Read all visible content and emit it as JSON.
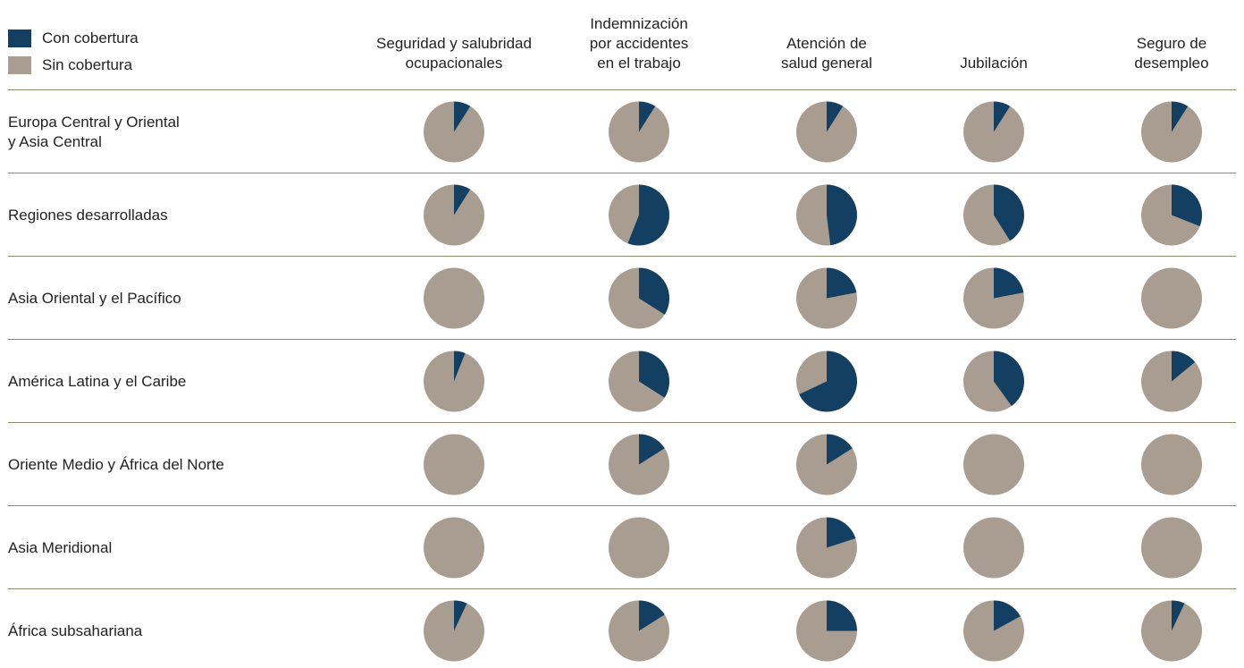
{
  "legend": {
    "covered_label": "Con cobertura",
    "uncovered_label": "Sin cobertura"
  },
  "colors": {
    "covered": "#123f62",
    "uncovered": "#a89d90",
    "rule": "#8e8a6f"
  },
  "chart_data": {
    "type": "pie",
    "series_names": [
      "Con cobertura",
      "Sin cobertura"
    ],
    "columns": [
      "Seguridad y salubridad ocupacionales",
      "Indemnización por accidentes en el trabajo",
      "Atención de salud general",
      "Jubilación",
      "Seguro de desempleo"
    ],
    "column_header_lines": [
      [
        "Seguridad y salubridad",
        "ocupacionales"
      ],
      [
        "Indemnización",
        "por accidentes",
        "en el trabajo"
      ],
      [
        "Atención de",
        "salud general"
      ],
      [
        "Jubilación"
      ],
      [
        "Seguro de",
        "desempleo"
      ]
    ],
    "rows": [
      {
        "label_lines": [
          "Europa Central y Oriental",
          "y Asia Central"
        ],
        "covered_share": [
          0.09,
          0.09,
          0.09,
          0.09,
          0.09
        ]
      },
      {
        "label_lines": [
          "Regiones desarrolladas"
        ],
        "covered_share": [
          0.09,
          0.56,
          0.48,
          0.41,
          0.31
        ]
      },
      {
        "label_lines": [
          "Asia Oriental y el Pacífico"
        ],
        "covered_share": [
          0,
          0.34,
          0.22,
          0.22,
          0
        ]
      },
      {
        "label_lines": [
          "América Latina y el Caribe"
        ],
        "covered_share": [
          0.06,
          0.34,
          0.68,
          0.4,
          0.14
        ]
      },
      {
        "label_lines": [
          "Oriente Medio y África del Norte"
        ],
        "covered_share": [
          0,
          0.16,
          0.16,
          0,
          0
        ]
      },
      {
        "label_lines": [
          "Asia Meridional"
        ],
        "covered_share": [
          0,
          0,
          0.2,
          0,
          0
        ]
      },
      {
        "label_lines": [
          "África subsahariana"
        ],
        "covered_share": [
          0.07,
          0.16,
          0.25,
          0.17,
          0.07
        ]
      }
    ]
  }
}
